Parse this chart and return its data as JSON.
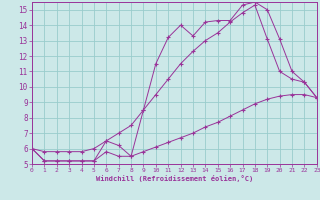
{
  "xlabel": "Windchill (Refroidissement éolien,°C)",
  "background_color": "#cce8e8",
  "line_color": "#993399",
  "grid_color": "#99cccc",
  "xlim": [
    0,
    23
  ],
  "ylim": [
    5,
    15.5
  ],
  "xticks": [
    0,
    1,
    2,
    3,
    4,
    5,
    6,
    7,
    8,
    9,
    10,
    11,
    12,
    13,
    14,
    15,
    16,
    17,
    18,
    19,
    20,
    21,
    22,
    23
  ],
  "yticks": [
    5,
    6,
    7,
    8,
    9,
    10,
    11,
    12,
    13,
    14,
    15
  ],
  "line1_x": [
    0,
    1,
    2,
    3,
    4,
    5,
    6,
    7,
    8,
    9,
    10,
    11,
    12,
    13,
    14,
    15,
    16,
    17,
    18,
    19,
    20,
    21,
    22,
    23
  ],
  "line1_y": [
    6.0,
    5.2,
    5.2,
    5.2,
    5.2,
    5.2,
    5.8,
    5.5,
    5.5,
    5.8,
    6.1,
    6.4,
    6.7,
    7.0,
    7.4,
    7.7,
    8.1,
    8.5,
    8.9,
    9.2,
    9.4,
    9.5,
    9.5,
    9.3
  ],
  "line2_x": [
    0,
    1,
    2,
    3,
    4,
    5,
    6,
    7,
    8,
    9,
    10,
    11,
    12,
    13,
    14,
    15,
    16,
    17,
    18,
    19,
    20,
    21,
    22,
    23
  ],
  "line2_y": [
    6.0,
    5.2,
    5.2,
    5.2,
    5.2,
    5.2,
    6.5,
    6.2,
    5.5,
    8.5,
    11.5,
    13.2,
    14.0,
    13.3,
    14.2,
    14.3,
    14.3,
    15.3,
    15.5,
    15.0,
    13.1,
    11.0,
    10.3,
    9.3
  ],
  "line3_x": [
    0,
    1,
    2,
    3,
    4,
    5,
    6,
    7,
    8,
    9,
    10,
    11,
    12,
    13,
    14,
    15,
    16,
    17,
    18,
    19,
    20,
    21,
    22,
    23
  ],
  "line3_y": [
    6.0,
    5.8,
    5.8,
    5.8,
    5.8,
    6.0,
    6.5,
    7.0,
    7.5,
    8.5,
    9.5,
    10.5,
    11.5,
    12.3,
    13.0,
    13.5,
    14.2,
    14.8,
    15.3,
    13.1,
    11.0,
    10.5,
    10.3,
    9.3
  ]
}
